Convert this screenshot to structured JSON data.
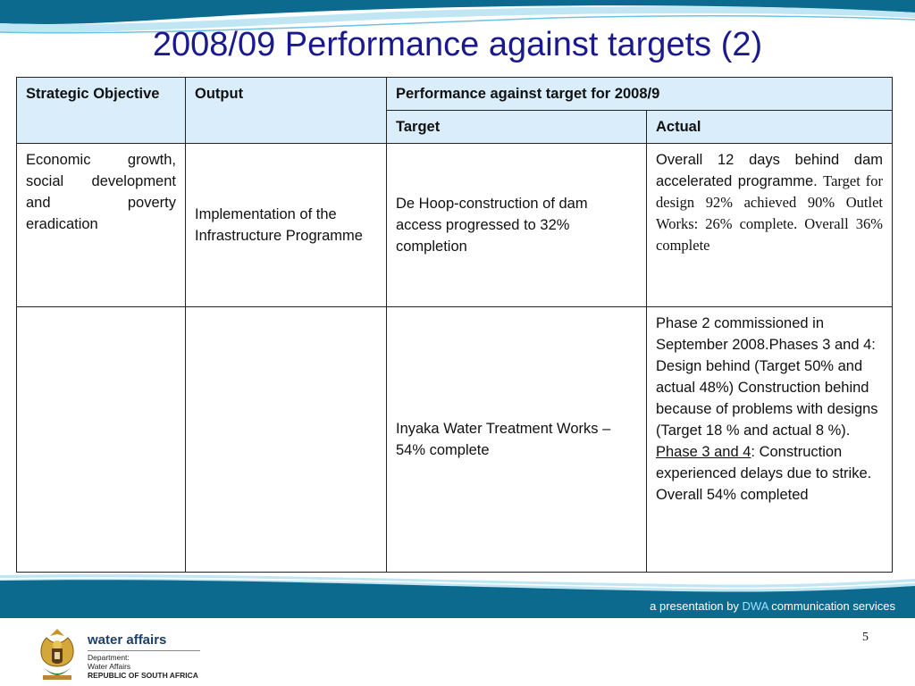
{
  "slide": {
    "title": "2008/09 Performance against targets (2)",
    "page_number": "5"
  },
  "table": {
    "headers": {
      "strategic_objective": "Strategic Objective",
      "output": "Output",
      "performance": "Performance against target for 2008/9",
      "target": "Target",
      "actual": "Actual"
    },
    "rows": [
      {
        "objective": "Economic growth, social development and poverty eradication",
        "output": "Implementation of the Infrastructure Programme",
        "target": "De Hoop-construction of dam access progressed to 32% completion",
        "actual_part1": "Overall 12 days behind dam accelerated programme.",
        "actual_part2": "Target for design 92% achieved 90% Outlet Works: 26% complete. Overall 36% complete"
      },
      {
        "objective": "",
        "output": "",
        "target": "Inyaka Water Treatment Works – 54% complete",
        "actual_part1": "Phase 2  commissioned in September 2008.Phases 3 and 4: Design behind (Target 50% and actual 48%) Construction behind because of problems with designs (Target 18 % and actual 8 %).",
        "actual_link": "Phase 3 and 4",
        "actual_part2": ": Construction experienced delays due to strike. Overall 54% completed"
      }
    ]
  },
  "footer": {
    "credit_prefix": "a presentation by",
    "credit_brand": "DWA",
    "credit_suffix": "communication services",
    "logo_title": "water affairs",
    "logo_line1": "Department:",
    "logo_line2": "Water Affairs",
    "logo_line3": "REPUBLIC OF SOUTH AFRICA"
  },
  "colors": {
    "title": "#1a1a8c",
    "header_bg": "#d9eefa",
    "wave_dark": "#0b6a8e",
    "wave_light": "#bfe6f2"
  }
}
